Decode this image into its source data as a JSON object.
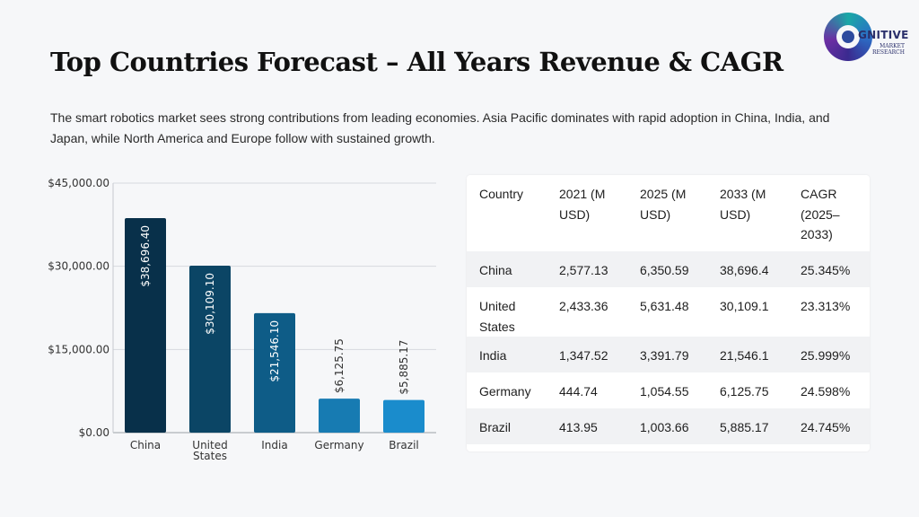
{
  "title": "Top Countries Forecast – All Years Revenue & CAGR",
  "description": "The smart robotics market sees strong contributions from leading economies. Asia Pacific dominates with rapid adoption in China, India, and Japan, while North America and Europe follow with sustained growth.",
  "logo": {
    "word": "GNITIVE",
    "line1": "MARKET",
    "line2": "RESEARCH"
  },
  "chart_data": {
    "type": "bar",
    "categories": [
      "China",
      "United States",
      "India",
      "Germany",
      "Brazil"
    ],
    "category_lines": [
      [
        "China"
      ],
      [
        "United",
        "States"
      ],
      [
        "India"
      ],
      [
        "Germany"
      ],
      [
        "Brazil"
      ]
    ],
    "values": [
      38696.4,
      30109.1,
      21546.1,
      6125.75,
      5885.17
    ],
    "value_labels": [
      "$38,696.40",
      "$30,109.10",
      "$21,546.10",
      "$6,125.75",
      "$5,885.17"
    ],
    "colors": [
      "#08304a",
      "#0b4565",
      "#0e5c87",
      "#177bb2",
      "#1a8ccc"
    ],
    "y_ticks": [
      0,
      15000,
      30000,
      45000
    ],
    "y_tick_labels": [
      "$0.00",
      "$15,000.00",
      "$30,000.00",
      "$45,000.00"
    ],
    "ylim": [
      0,
      45000
    ],
    "grid": true
  },
  "table": {
    "headers": [
      [
        "2021 (M",
        "USD)"
      ],
      [
        "2025 (M",
        "USD)"
      ],
      [
        "2033 (M",
        "USD)"
      ],
      [
        "CAGR",
        "(2025–",
        "2033)"
      ]
    ],
    "header_first": "Country",
    "rows": [
      {
        "country": [
          "China"
        ],
        "y2021": "2,577.13",
        "y2025": "6,350.59",
        "y2033": "38,696.4",
        "cagr": "25.345%"
      },
      {
        "country": [
          "United",
          "States"
        ],
        "y2021": "2,433.36",
        "y2025": "5,631.48",
        "y2033": "30,109.1",
        "cagr": "23.313%"
      },
      {
        "country": [
          "India"
        ],
        "y2021": "1,347.52",
        "y2025": "3,391.79",
        "y2033": "21,546.1",
        "cagr": "25.999%"
      },
      {
        "country": [
          "Germany"
        ],
        "y2021": "444.74",
        "y2025": "1,054.55",
        "y2033": "6,125.75",
        "cagr": "24.598%"
      },
      {
        "country": [
          "Brazil"
        ],
        "y2021": "413.95",
        "y2025": "1,003.66",
        "y2033": "5,885.17",
        "cagr": "24.745%"
      }
    ]
  }
}
